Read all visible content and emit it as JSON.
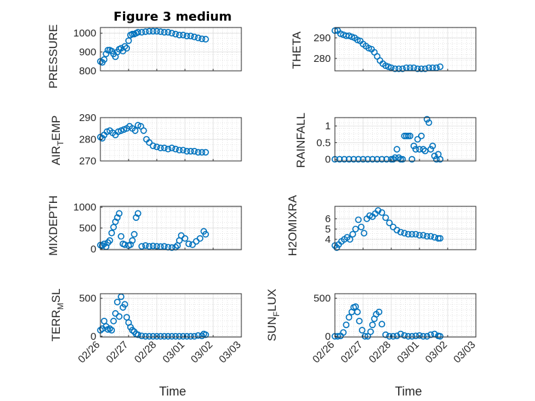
{
  "title": "Figure 3 medium",
  "marker_color": "#0072bd",
  "grid_color": "#cfcfcf",
  "x_tick_labels": [
    "02/26",
    "02/27",
    "02/28",
    "03/01",
    "03/02",
    "03/03"
  ],
  "x_label": "Time",
  "chart_data": [
    {
      "type": "scatter",
      "name": "pressure",
      "ylabel": "PRESSURE",
      "ylim": [
        800,
        1030
      ],
      "yticks": [
        800,
        900,
        1000
      ],
      "xlim": [
        0,
        7
      ],
      "x": [
        0,
        0.1,
        0.2,
        0.3,
        0.4,
        0.5,
        0.6,
        0.7,
        0.8,
        0.9,
        1.0,
        1.1,
        1.2,
        1.3,
        1.4,
        1.5,
        1.6,
        1.7,
        1.8,
        1.9,
        2.0,
        2.2,
        2.4,
        2.6,
        2.8,
        3.0,
        3.2,
        3.4,
        3.6,
        3.8,
        4.0,
        4.2,
        4.4,
        4.6,
        4.8,
        5.0,
        5.2,
        5.4,
        5.6
      ],
      "values": [
        850,
        845,
        860,
        890,
        910,
        910,
        905,
        890,
        875,
        900,
        915,
        920,
        905,
        930,
        920,
        960,
        990,
        995,
        995,
        1000,
        1005,
        1005,
        1008,
        1010,
        1010,
        1010,
        1008,
        1005,
        1005,
        1000,
        995,
        990,
        990,
        985,
        985,
        980,
        975,
        970,
        968
      ]
    },
    {
      "type": "scatter",
      "name": "theta",
      "ylabel": "THETA",
      "ylim": [
        274,
        295
      ],
      "yticks": [
        280,
        290
      ],
      "xlim": [
        0,
        7
      ],
      "x": [
        0,
        0.15,
        0.3,
        0.45,
        0.6,
        0.75,
        0.9,
        1.05,
        1.2,
        1.35,
        1.5,
        1.65,
        1.8,
        1.95,
        2.1,
        2.25,
        2.4,
        2.55,
        2.7,
        2.85,
        3.0,
        3.2,
        3.4,
        3.6,
        3.8,
        4.0,
        4.2,
        4.4,
        4.6,
        4.8,
        5.0,
        5.2,
        5.4,
        5.6
      ],
      "values": [
        293.5,
        293.5,
        292,
        291.5,
        291,
        291,
        290.5,
        290,
        289,
        288.5,
        287,
        286,
        285,
        284.5,
        283,
        281,
        279,
        277.5,
        276.5,
        276,
        275.5,
        275,
        275,
        275,
        275.5,
        275.5,
        275.5,
        275,
        275,
        275,
        275.5,
        275.5,
        275.5,
        276
      ]
    },
    {
      "type": "scatter",
      "name": "air_temp",
      "ylabel_main": "AIR",
      "ylabel_sub": "T",
      "ylabel_tail": "EMP",
      "ylim": [
        270,
        290
      ],
      "yticks": [
        270,
        280,
        290
      ],
      "xlim": [
        0,
        7
      ],
      "x": [
        0,
        0.1,
        0.2,
        0.35,
        0.5,
        0.65,
        0.8,
        0.95,
        1.1,
        1.25,
        1.4,
        1.55,
        1.7,
        1.85,
        2.0,
        2.15,
        2.3,
        2.45,
        2.6,
        2.8,
        3.0,
        3.2,
        3.4,
        3.6,
        3.8,
        4.0,
        4.2,
        4.4,
        4.6,
        4.8,
        5.0,
        5.2,
        5.4,
        5.6
      ],
      "values": [
        281,
        280.5,
        282,
        283.5,
        284,
        283,
        282,
        283.5,
        284,
        284.5,
        285,
        286,
        285,
        284,
        286.5,
        286,
        284,
        280,
        278.5,
        277,
        276.5,
        276,
        276,
        275.5,
        276,
        275.5,
        275,
        275,
        274.5,
        274.5,
        274.5,
        274,
        274,
        274
      ]
    },
    {
      "type": "scatter",
      "name": "rainfall",
      "ylabel": "RAINFALL",
      "ylim": [
        -0.05,
        1.25
      ],
      "yticks": [
        0,
        0.5,
        1
      ],
      "ytick_labels": [
        "0",
        "0.5",
        "1"
      ],
      "xlim": [
        0,
        7
      ],
      "x": [
        0,
        0.25,
        0.5,
        0.75,
        1.0,
        1.25,
        1.5,
        1.75,
        2.0,
        2.25,
        2.5,
        2.75,
        3.0,
        3.1,
        3.2,
        3.3,
        3.4,
        3.5,
        3.6,
        3.7,
        3.8,
        3.9,
        4.0,
        4.1,
        4.2,
        4.3,
        4.4,
        4.5,
        4.6,
        4.7,
        4.8,
        4.9,
        5.0,
        5.1,
        5.2,
        5.3,
        5.4,
        5.5,
        5.6
      ],
      "values": [
        0,
        0,
        0,
        0,
        0,
        0,
        0,
        0,
        0,
        0,
        0,
        0,
        0,
        0,
        0.05,
        0.3,
        0.05,
        0,
        0,
        0.7,
        0.7,
        0.7,
        0.7,
        0,
        0.4,
        0.3,
        0.6,
        0.3,
        0.7,
        0.3,
        0.25,
        1.2,
        1.1,
        0.3,
        0.4,
        0.1,
        0,
        0.15,
        0
      ]
    },
    {
      "type": "scatter",
      "name": "mixdepth",
      "ylabel": "MIXDEPTH",
      "ylim": [
        -20,
        1020
      ],
      "yticks": [
        0,
        500,
        1000
      ],
      "xlim": [
        0,
        7
      ],
      "x": [
        0,
        0.1,
        0.2,
        0.3,
        0.4,
        0.5,
        0.6,
        0.7,
        0.8,
        0.9,
        1.0,
        1.1,
        1.2,
        1.3,
        1.5,
        1.6,
        1.7,
        1.8,
        1.9,
        2.0,
        2.2,
        2.4,
        2.6,
        2.8,
        3.0,
        3.2,
        3.4,
        3.6,
        3.8,
        4.0,
        4.1,
        4.2,
        4.3,
        4.5,
        4.7,
        4.9,
        5.1,
        5.3,
        5.5,
        5.6
      ],
      "values": [
        90,
        80,
        120,
        50,
        150,
        200,
        380,
        520,
        650,
        750,
        850,
        300,
        120,
        100,
        80,
        100,
        200,
        350,
        750,
        850,
        60,
        80,
        60,
        70,
        60,
        55,
        60,
        40,
        30,
        40,
        80,
        200,
        320,
        250,
        120,
        100,
        180,
        250,
        420,
        350
      ]
    },
    {
      "type": "scatter",
      "name": "h2omixra",
      "ylabel": "H2OMIXRA",
      "ylim": [
        3.0,
        7.2
      ],
      "yticks": [
        4,
        5,
        6
      ],
      "xlim": [
        0,
        7
      ],
      "x": [
        0,
        0.1,
        0.2,
        0.35,
        0.5,
        0.65,
        0.8,
        0.95,
        1.1,
        1.25,
        1.4,
        1.55,
        1.7,
        1.85,
        2.0,
        2.15,
        2.3,
        2.5,
        2.7,
        2.9,
        3.1,
        3.3,
        3.5,
        3.7,
        3.9,
        4.1,
        4.3,
        4.5,
        4.7,
        4.9,
        5.1,
        5.3,
        5.5,
        5.6
      ],
      "values": [
        3.4,
        3.2,
        3.5,
        3.8,
        4.0,
        4.2,
        4.0,
        4.5,
        5.0,
        5.9,
        5.2,
        4.6,
        6.0,
        6.3,
        6.2,
        6.5,
        6.8,
        6.6,
        6.1,
        5.6,
        5.2,
        4.9,
        4.7,
        4.6,
        4.5,
        4.5,
        4.5,
        4.4,
        4.4,
        4.3,
        4.3,
        4.2,
        4.1,
        4.1
      ]
    },
    {
      "type": "scatter",
      "name": "terr_msl",
      "ylabel_main": "TERR",
      "ylabel_sub": "M",
      "ylabel_tail": "SL",
      "ylim": [
        -10,
        560
      ],
      "yticks": [
        0,
        500
      ],
      "xlim": [
        0,
        7
      ],
      "x": [
        0,
        0.1,
        0.2,
        0.3,
        0.4,
        0.5,
        0.6,
        0.7,
        0.8,
        0.9,
        1.0,
        1.1,
        1.2,
        1.3,
        1.4,
        1.5,
        1.6,
        1.7,
        1.8,
        1.9,
        2.0,
        2.2,
        2.4,
        2.6,
        2.8,
        3.0,
        3.2,
        3.4,
        3.6,
        3.8,
        4.0,
        4.2,
        4.4,
        4.6,
        4.8,
        5.0,
        5.2,
        5.4,
        5.5,
        5.6
      ],
      "values": [
        80,
        100,
        200,
        130,
        90,
        100,
        80,
        200,
        300,
        450,
        260,
        520,
        380,
        420,
        250,
        180,
        120,
        80,
        60,
        30,
        20,
        5,
        0,
        0,
        0,
        0,
        0,
        0,
        0,
        0,
        0,
        0,
        0,
        0,
        0,
        0,
        10,
        5,
        30,
        20
      ]
    },
    {
      "type": "scatter",
      "name": "sun_flux",
      "ylabel_main": "SUN",
      "ylabel_sub": "F",
      "ylabel_tail": "LUX",
      "ylim": [
        -10,
        560
      ],
      "yticks": [
        0,
        500
      ],
      "xlim": [
        0,
        7
      ],
      "x": [
        0,
        0.15,
        0.3,
        0.45,
        0.6,
        0.75,
        0.9,
        1.0,
        1.1,
        1.2,
        1.3,
        1.45,
        1.6,
        1.75,
        1.9,
        2.0,
        2.1,
        2.2,
        2.35,
        2.5,
        2.7,
        2.9,
        3.1,
        3.3,
        3.5,
        3.7,
        3.9,
        4.1,
        4.3,
        4.5,
        4.7,
        4.9,
        5.1,
        5.3,
        5.5,
        5.6
      ],
      "values": [
        0,
        0,
        5,
        50,
        150,
        250,
        320,
        380,
        390,
        320,
        200,
        80,
        0,
        0,
        60,
        150,
        230,
        290,
        320,
        160,
        20,
        0,
        0,
        5,
        30,
        10,
        0,
        0,
        5,
        10,
        0,
        0,
        20,
        30,
        5,
        0
      ]
    }
  ]
}
